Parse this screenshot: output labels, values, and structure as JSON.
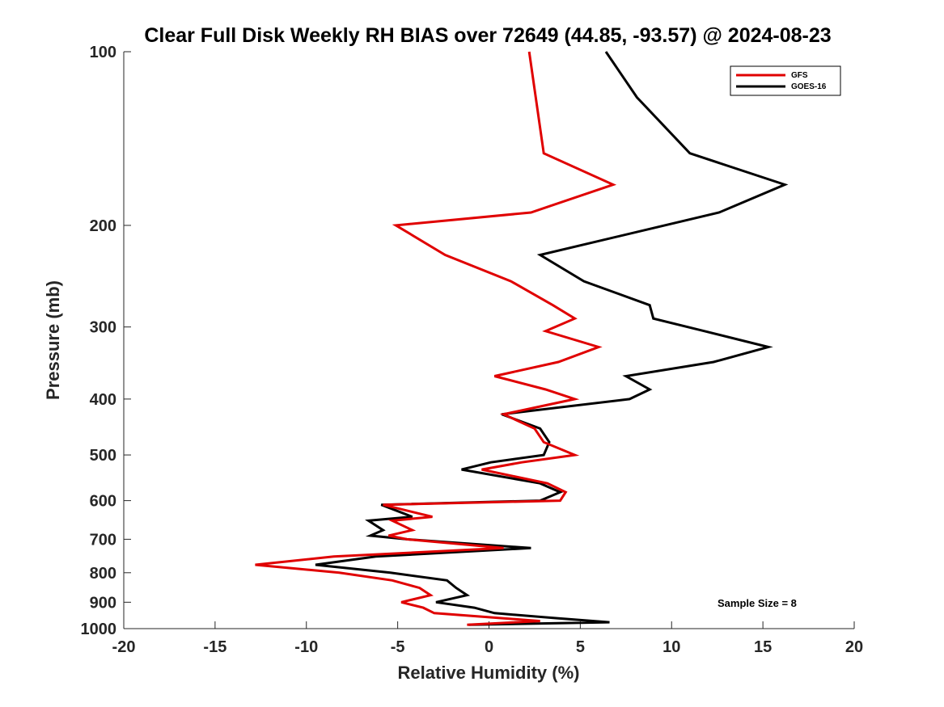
{
  "chart_data": {
    "type": "line",
    "title": "Clear Full Disk Weekly RH BIAS over 72649 (44.85, -93.57) @ 2024-08-23",
    "xlabel": "Relative Humidity (%)",
    "ylabel": "Pressure (mb)",
    "xlim": [
      -20,
      20
    ],
    "ylim": [
      100,
      1000
    ],
    "y_scale": "log",
    "y_reversed": true,
    "x_ticks": [
      "-20",
      "-15",
      "-10",
      "-5",
      "0",
      "5",
      "10",
      "15",
      "20"
    ],
    "y_ticks": [
      "100",
      "200",
      "300",
      "400",
      "500",
      "600",
      "700",
      "800",
      "900",
      "1000"
    ],
    "grid": false,
    "legend_position": "top-right",
    "annotation": "Sample Size = 8",
    "series": [
      {
        "name": "GFS",
        "color": "#e00000",
        "points": [
          {
            "x": 2.2,
            "p": 100
          },
          {
            "x": 3.0,
            "p": 150
          },
          {
            "x": 6.8,
            "p": 170
          },
          {
            "x": 2.3,
            "p": 190
          },
          {
            "x": -5.1,
            "p": 200
          },
          {
            "x": -2.4,
            "p": 225
          },
          {
            "x": 1.2,
            "p": 250
          },
          {
            "x": 3.5,
            "p": 275
          },
          {
            "x": 4.7,
            "p": 290
          },
          {
            "x": 3.1,
            "p": 305
          },
          {
            "x": 6.0,
            "p": 325
          },
          {
            "x": 3.8,
            "p": 345
          },
          {
            "x": 0.3,
            "p": 365
          },
          {
            "x": 3.1,
            "p": 385
          },
          {
            "x": 4.7,
            "p": 400
          },
          {
            "x": 0.8,
            "p": 425
          },
          {
            "x": 2.5,
            "p": 450
          },
          {
            "x": 3.0,
            "p": 475
          },
          {
            "x": 4.7,
            "p": 500
          },
          {
            "x": 1.8,
            "p": 515
          },
          {
            "x": -0.4,
            "p": 530
          },
          {
            "x": 3.2,
            "p": 560
          },
          {
            "x": 4.2,
            "p": 580
          },
          {
            "x": 3.9,
            "p": 600
          },
          {
            "x": -5.8,
            "p": 610
          },
          {
            "x": -3.1,
            "p": 640
          },
          {
            "x": -5.3,
            "p": 650
          },
          {
            "x": -4.2,
            "p": 675
          },
          {
            "x": -5.5,
            "p": 690
          },
          {
            "x": -4.5,
            "p": 700
          },
          {
            "x": 0.8,
            "p": 725
          },
          {
            "x": -8.5,
            "p": 750
          },
          {
            "x": -12.8,
            "p": 775
          },
          {
            "x": -8.2,
            "p": 800
          },
          {
            "x": -5.3,
            "p": 825
          },
          {
            "x": -3.8,
            "p": 850
          },
          {
            "x": -3.2,
            "p": 875
          },
          {
            "x": -4.8,
            "p": 900
          },
          {
            "x": -3.6,
            "p": 920
          },
          {
            "x": -3.0,
            "p": 940
          },
          {
            "x": 2.8,
            "p": 970
          },
          {
            "x": -1.2,
            "p": 985
          }
        ]
      },
      {
        "name": "GOES-16",
        "color": "#000000",
        "points": [
          {
            "x": 6.4,
            "p": 100
          },
          {
            "x": 8.1,
            "p": 120
          },
          {
            "x": 11.0,
            "p": 150
          },
          {
            "x": 16.2,
            "p": 170
          },
          {
            "x": 12.6,
            "p": 190
          },
          {
            "x": 2.8,
            "p": 225
          },
          {
            "x": 5.2,
            "p": 250
          },
          {
            "x": 8.8,
            "p": 275
          },
          {
            "x": 9.0,
            "p": 290
          },
          {
            "x": 11.8,
            "p": 305
          },
          {
            "x": 15.3,
            "p": 325
          },
          {
            "x": 12.3,
            "p": 345
          },
          {
            "x": 7.5,
            "p": 365
          },
          {
            "x": 8.8,
            "p": 385
          },
          {
            "x": 7.7,
            "p": 400
          },
          {
            "x": 0.7,
            "p": 425
          },
          {
            "x": 2.8,
            "p": 450
          },
          {
            "x": 3.3,
            "p": 475
          },
          {
            "x": 3.0,
            "p": 500
          },
          {
            "x": 0.1,
            "p": 515
          },
          {
            "x": -1.5,
            "p": 530
          },
          {
            "x": 2.8,
            "p": 560
          },
          {
            "x": 3.9,
            "p": 580
          },
          {
            "x": 2.8,
            "p": 600
          },
          {
            "x": -5.9,
            "p": 610
          },
          {
            "x": -4.2,
            "p": 640
          },
          {
            "x": -6.6,
            "p": 650
          },
          {
            "x": -5.8,
            "p": 675
          },
          {
            "x": -6.5,
            "p": 690
          },
          {
            "x": -4.5,
            "p": 700
          },
          {
            "x": 2.3,
            "p": 725
          },
          {
            "x": -6.2,
            "p": 750
          },
          {
            "x": -9.5,
            "p": 775
          },
          {
            "x": -5.4,
            "p": 800
          },
          {
            "x": -2.3,
            "p": 825
          },
          {
            "x": -1.8,
            "p": 850
          },
          {
            "x": -1.2,
            "p": 875
          },
          {
            "x": -2.9,
            "p": 900
          },
          {
            "x": -0.8,
            "p": 920
          },
          {
            "x": 0.3,
            "p": 940
          },
          {
            "x": 3.8,
            "p": 960
          },
          {
            "x": 6.6,
            "p": 975
          },
          {
            "x": -1.1,
            "p": 985
          }
        ]
      }
    ]
  }
}
